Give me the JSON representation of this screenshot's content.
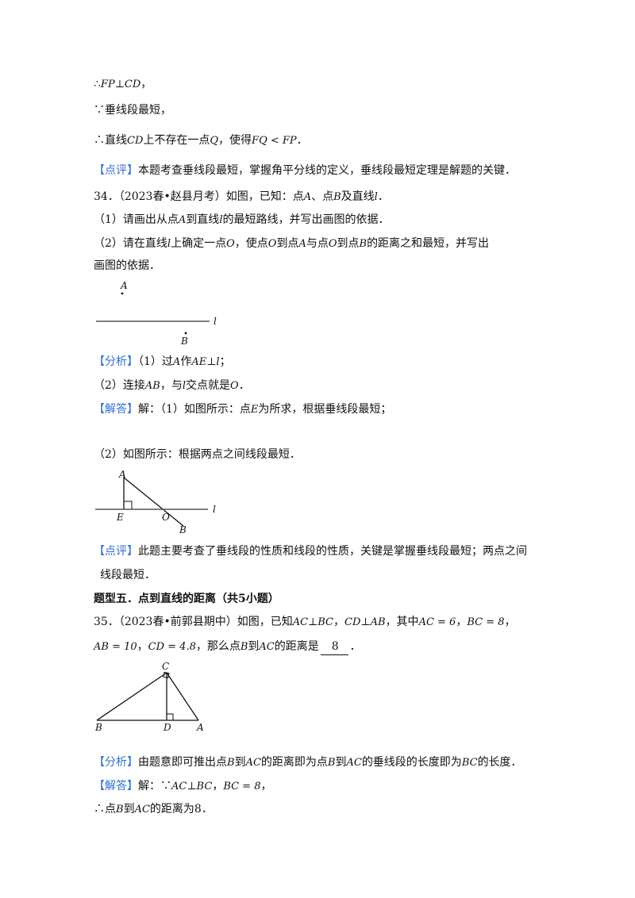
{
  "lines": {
    "l1_a": "∴",
    "l1_m": "FP⊥CD",
    "l1_b": "，",
    "l2": "∵垂线段最短，",
    "l3_a": "∴直线",
    "l3_m1": "CD",
    "l3_b": "上不存在一点",
    "l3_m2": "Q",
    "l3_c": "，使得",
    "l3_m3": "FQ < FP",
    "l3_d": "．",
    "l4_tag": "【点评】",
    "l4_text": "本题考查垂线段最短，掌握角平分线的定义，垂线段最短定理是解题的关键．",
    "l5_a": "34．（2023春•赵县月考）如图，已知：点",
    "l5_m1": "A",
    "l5_b": "、点",
    "l5_m2": "B",
    "l5_c": "及直线",
    "l5_m3": "l",
    "l5_d": "．",
    "l6_a": "（1）请画出从点",
    "l6_m1": "A",
    "l6_b": "到直线",
    "l6_m2": "l",
    "l6_c": "的最短路线，并写出画图的依据．",
    "l7_a": "（2）请在直线",
    "l7_m1": "l",
    "l7_b": "上确定一点",
    "l7_m2": "O",
    "l7_c": "，使点",
    "l7_m3": "O",
    "l7_d": "到点",
    "l7_m4": "A",
    "l7_e": "与点",
    "l7_m5": "O",
    "l7_f": "到点",
    "l7_m6": "B",
    "l7_g": "的距离之和最短，并写出",
    "l8": "画图的依据．",
    "l9_tag": "【分析】",
    "l9_a": "（1）过",
    "l9_m1": "A",
    "l9_b": "作",
    "l9_m2": "AE⊥l",
    "l9_c": "；",
    "l10_a": "（2）连接",
    "l10_m1": "AB",
    "l10_b": "，与",
    "l10_m2": "l",
    "l10_c": "交点就是",
    "l10_m3": "O",
    "l10_d": "．",
    "l11_tag": "【解答】",
    "l11_a": "解：（1）如图所示：点",
    "l11_m": "E",
    "l11_b": "为所求，根据垂线段最短；",
    "l12": "（2）如图所示：根据两点之间线段最短．",
    "l13_tag": "【点评】",
    "l13_text": "此题主要考查了垂线段的性质和线段的性质，关键是掌握垂线段最短；两点之间",
    "l14": "线段最短．",
    "l15": "题型五．点到直线的距离（共5小题）",
    "l16_a": "35．（2023春•前郭县期中）如图，已知",
    "l16_m1": "AC⊥BC",
    "l16_b": "，",
    "l16_m2": "CD⊥AB",
    "l16_c": "，其中",
    "l16_m3": "AC = 6",
    "l16_d": "，",
    "l16_m4": "BC = 8",
    "l16_e": "，",
    "l17_m1": "AB = 10",
    "l17_a": "，",
    "l17_m2": "CD = 4.8",
    "l17_b": "，那么点",
    "l17_m3": "B",
    "l17_c": "到",
    "l17_m4": "AC",
    "l17_d": "的距离是",
    "l17_ans": "8",
    "l17_e": "．",
    "l18_tag": "【分析】",
    "l18_a": "由题意即可推出点",
    "l18_m1": "B",
    "l18_b": "到",
    "l18_m2": "AC",
    "l18_c": "的距离即为点",
    "l18_m3": "B",
    "l18_d": "到",
    "l18_m4": "AC",
    "l18_e": "的垂线段的长度即为",
    "l18_m5": "BC",
    "l18_f": "的长度．",
    "l19_tag": "【解答】",
    "l19_a": "解：∵",
    "l19_m1": "AC⊥BC",
    "l19_b": "，",
    "l19_m2": "BC = 8",
    "l19_c": "，",
    "l20_a": "∴点",
    "l20_m1": "B",
    "l20_b": "到",
    "l20_m2": "AC",
    "l20_c": "的距离为8．"
  },
  "fig1": {
    "point_a": "A",
    "point_b": "B",
    "line_l": "l"
  },
  "fig2": {
    "point_a": "A",
    "point_e": "E",
    "point_o": "O",
    "point_b": "B",
    "line_l": "l"
  },
  "fig3": {
    "point_c": "C",
    "point_b": "B",
    "point_d": "D",
    "point_a": "A"
  },
  "colors": {
    "tag": "#2f6fd6",
    "text": "#111111"
  }
}
